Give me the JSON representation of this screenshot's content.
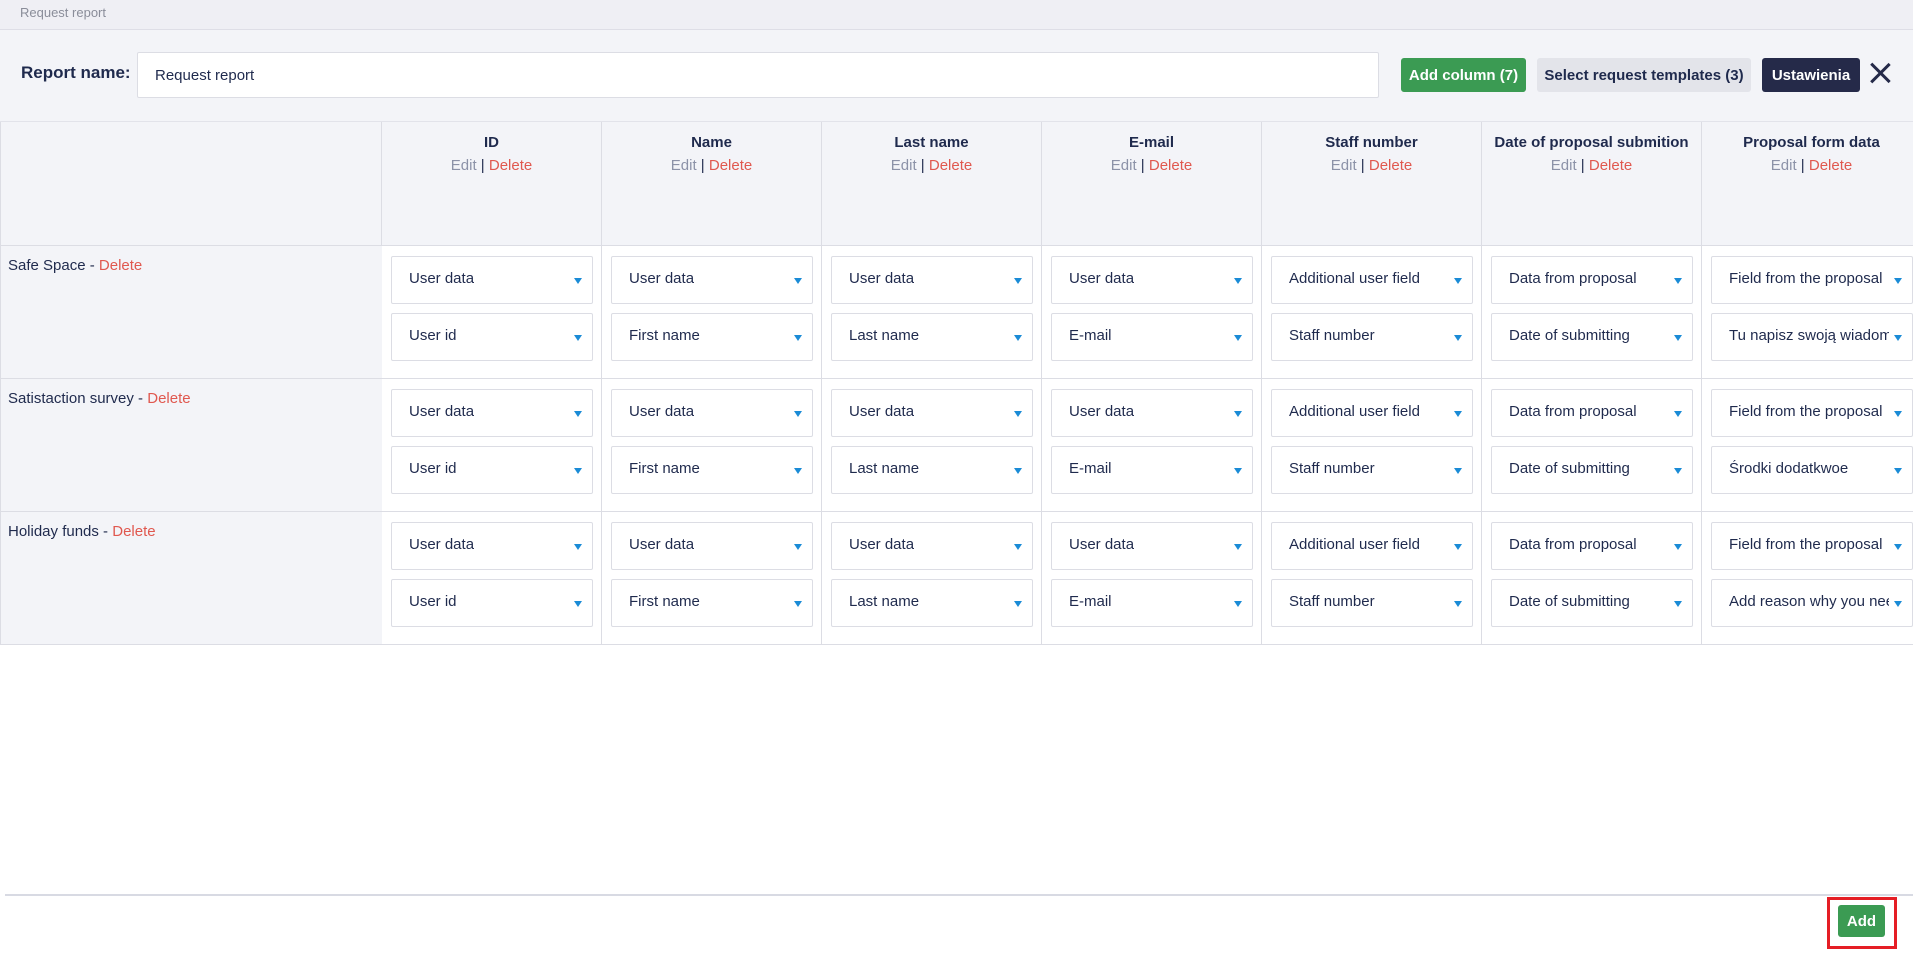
{
  "window": {
    "title": "Request report"
  },
  "header": {
    "report_name_label": "Report name:",
    "report_name_value": "Request report",
    "add_column_label": "Add column (7)",
    "select_templates_label": "Select request templates (3)",
    "settings_label": "Ustawienia"
  },
  "common": {
    "edit": "Edit",
    "delete": "Delete",
    "separator": "|",
    "dash": " - "
  },
  "columns": [
    {
      "title": "ID"
    },
    {
      "title": "Name"
    },
    {
      "title": "Last name"
    },
    {
      "title": "E-mail"
    },
    {
      "title": "Staff number"
    },
    {
      "title": "Date of proposal submition"
    },
    {
      "title": "Proposal form data"
    }
  ],
  "templates": [
    {
      "name": "Safe Space",
      "cells": [
        {
          "source": "User data",
          "field": "User id"
        },
        {
          "source": "User data",
          "field": "First name"
        },
        {
          "source": "User data",
          "field": "Last name"
        },
        {
          "source": "User data",
          "field": "E-mail"
        },
        {
          "source": "Additional user field",
          "field": "Staff number"
        },
        {
          "source": "Data from proposal",
          "field": "Date of submitting"
        },
        {
          "source": "Field from the proposal",
          "field": "Tu napisz swoją wiadomość"
        }
      ]
    },
    {
      "name": "Satistaction survey",
      "cells": [
        {
          "source": "User data",
          "field": "User id"
        },
        {
          "source": "User data",
          "field": "First name"
        },
        {
          "source": "User data",
          "field": "Last name"
        },
        {
          "source": "User data",
          "field": "E-mail"
        },
        {
          "source": "Additional user field",
          "field": "Staff number"
        },
        {
          "source": "Data from proposal",
          "field": "Date of submitting"
        },
        {
          "source": "Field from the proposal",
          "field": "Środki dodatkwoe"
        }
      ]
    },
    {
      "name": "Holiday funds",
      "cells": [
        {
          "source": "User data",
          "field": "User id"
        },
        {
          "source": "User data",
          "field": "First name"
        },
        {
          "source": "User data",
          "field": "Last name"
        },
        {
          "source": "User data",
          "field": "E-mail"
        },
        {
          "source": "Additional user field",
          "field": "Staff number"
        },
        {
          "source": "Data from proposal",
          "field": "Date of submitting"
        },
        {
          "source": "Field from the proposal",
          "field": "Add reason why you need"
        }
      ]
    }
  ],
  "footer": {
    "add_label": "Add"
  },
  "colors": {
    "accent_green": "#3b9b53",
    "dark_navy": "#252a49",
    "delete_red": "#e0584f",
    "arrow_blue": "#1a8bd6",
    "highlight_red": "#e51e25"
  }
}
